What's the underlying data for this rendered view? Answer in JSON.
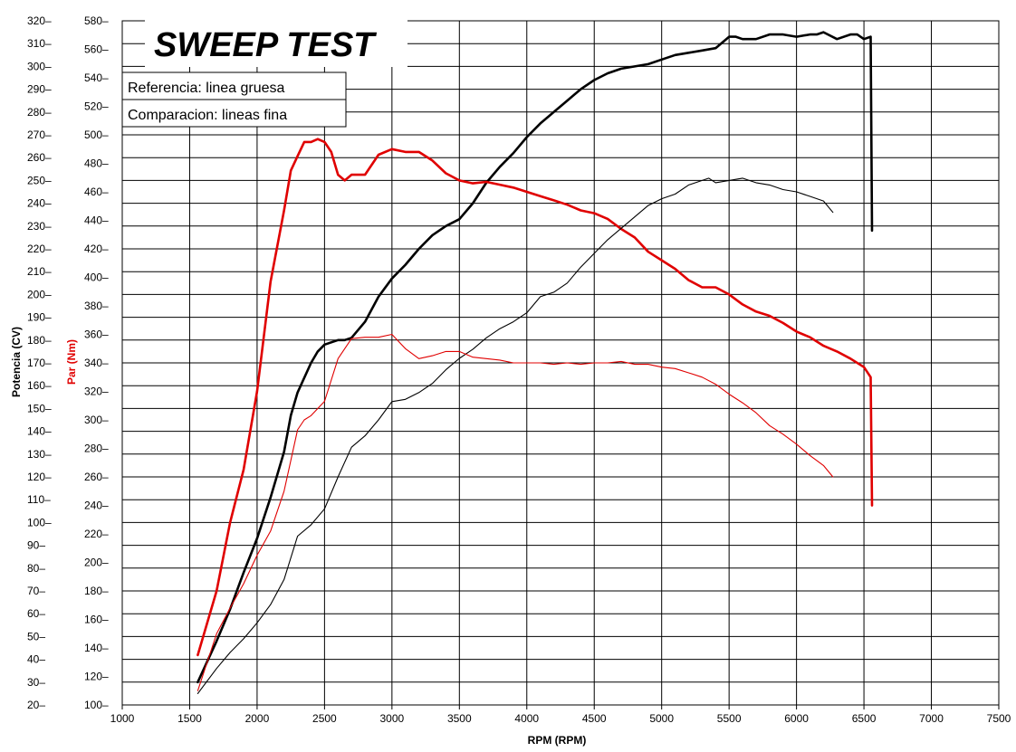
{
  "chart_data": {
    "type": "line",
    "title": "SWEEP TEST",
    "legend": [
      "Referencia: linea gruesa",
      "Comparacion: lineas fina"
    ],
    "xlabel": "RPM (RPM)",
    "ylabel_left": "Potencia (CV)",
    "ylabel_right": "Par (Nm)",
    "xlim": [
      1000,
      7500
    ],
    "ylim_power": [
      20,
      320
    ],
    "ylim_torque": [
      100,
      580
    ],
    "x_ticks": [
      1000,
      1500,
      2000,
      2500,
      3000,
      3500,
      4000,
      4500,
      5000,
      5500,
      6000,
      6500,
      7000,
      7500
    ],
    "power_ticks": [
      20,
      30,
      40,
      50,
      60,
      70,
      80,
      90,
      100,
      110,
      120,
      130,
      140,
      150,
      160,
      170,
      180,
      190,
      200,
      210,
      220,
      230,
      240,
      250,
      260,
      270,
      280,
      290,
      300,
      310,
      320
    ],
    "torque_ticks": [
      100,
      120,
      140,
      160,
      180,
      200,
      220,
      240,
      260,
      280,
      300,
      320,
      340,
      360,
      380,
      400,
      420,
      440,
      460,
      480,
      500,
      520,
      540,
      560,
      580
    ],
    "grid": true,
    "colors": {
      "power": "#000000",
      "torque": "#e00000",
      "grid": "#000000"
    },
    "series": [
      {
        "name": "Potencia (CV)",
        "axis": "power",
        "color": "#000000",
        "weight": "thick",
        "x": [
          1560,
          1700,
          1800,
          1900,
          2000,
          2100,
          2200,
          2250,
          2300,
          2400,
          2450,
          2500,
          2600,
          2650,
          2700,
          2800,
          2900,
          3000,
          3100,
          3200,
          3300,
          3400,
          3500,
          3600,
          3700,
          3800,
          3900,
          4000,
          4100,
          4200,
          4300,
          4400,
          4500,
          4600,
          4700,
          4800,
          4900,
          5000,
          5100,
          5200,
          5300,
          5400,
          5500,
          5550,
          5600,
          5700,
          5800,
          5900,
          6000,
          6100,
          6150,
          6200,
          6300,
          6400,
          6450,
          6500,
          6550,
          6560
        ],
        "y": [
          30,
          48,
          62,
          78,
          93,
          111,
          131,
          147,
          157,
          170,
          175,
          178,
          180,
          180,
          181,
          188,
          199,
          207,
          213,
          220,
          226,
          230,
          233,
          240,
          249,
          256,
          262,
          269,
          275,
          280,
          285,
          290,
          294,
          297,
          299,
          300,
          301,
          303,
          305,
          306,
          307,
          308,
          313,
          313,
          312,
          312,
          314,
          314,
          313,
          314,
          314,
          315,
          312,
          314,
          314,
          312,
          313,
          228
        ]
      },
      {
        "name": "Par (Nm)",
        "axis": "torque",
        "color": "#e00000",
        "weight": "thick",
        "x": [
          1560,
          1700,
          1800,
          1900,
          2000,
          2100,
          2200,
          2250,
          2300,
          2350,
          2400,
          2450,
          2500,
          2550,
          2600,
          2650,
          2700,
          2800,
          2900,
          3000,
          3100,
          3200,
          3300,
          3400,
          3500,
          3600,
          3700,
          3800,
          3900,
          4000,
          4100,
          4200,
          4300,
          4400,
          4500,
          4600,
          4700,
          4800,
          4900,
          5000,
          5100,
          5200,
          5300,
          5400,
          5500,
          5600,
          5700,
          5800,
          5900,
          6000,
          6100,
          6200,
          6300,
          6400,
          6500,
          6550,
          6560
        ],
        "y": [
          135,
          180,
          228,
          265,
          320,
          397,
          447,
          475,
          485,
          495,
          495,
          497,
          495,
          488,
          472,
          468,
          472,
          472,
          486,
          490,
          488,
          488,
          482,
          473,
          468,
          466,
          467,
          465,
          463,
          460,
          457,
          454,
          451,
          447,
          445,
          441,
          434,
          428,
          418,
          412,
          406,
          398,
          393,
          393,
          388,
          381,
          376,
          373,
          368,
          362,
          358,
          352,
          348,
          343,
          337,
          330,
          240
        ]
      },
      {
        "name": "Potencia (CV)",
        "axis": "power",
        "color": "#000000",
        "weight": "thin",
        "x": [
          1560,
          1700,
          1800,
          1900,
          2000,
          2100,
          2200,
          2300,
          2400,
          2500,
          2600,
          2700,
          2800,
          2900,
          3000,
          3100,
          3200,
          3300,
          3400,
          3500,
          3600,
          3700,
          3800,
          3900,
          4000,
          4100,
          4200,
          4300,
          4400,
          4500,
          4600,
          4700,
          4800,
          4900,
          5000,
          5100,
          5200,
          5300,
          5350,
          5400,
          5500,
          5600,
          5700,
          5800,
          5900,
          6000,
          6100,
          6200,
          6270
        ],
        "y": [
          25,
          36,
          43,
          49,
          56,
          64,
          75,
          94,
          99,
          106,
          120,
          133,
          138,
          145,
          153,
          154,
          157,
          161,
          167,
          172,
          176,
          181,
          185,
          188,
          192,
          199,
          201,
          205,
          212,
          218,
          224,
          229,
          234,
          239,
          242,
          244,
          248,
          250,
          251,
          249,
          250,
          251,
          249,
          248,
          246,
          245,
          243,
          241,
          236
        ]
      },
      {
        "name": "Par (Nm)",
        "axis": "torque",
        "color": "#e00000",
        "weight": "thin",
        "x": [
          1560,
          1700,
          1800,
          1900,
          2000,
          2100,
          2200,
          2300,
          2350,
          2400,
          2500,
          2600,
          2700,
          2800,
          2900,
          3000,
          3100,
          3200,
          3300,
          3400,
          3500,
          3600,
          3700,
          3800,
          3900,
          4000,
          4100,
          4200,
          4300,
          4400,
          4500,
          4600,
          4700,
          4800,
          4900,
          5000,
          5100,
          5200,
          5300,
          5400,
          5500,
          5600,
          5700,
          5800,
          5900,
          6000,
          6100,
          6200,
          6270
        ],
        "y": [
          110,
          150,
          168,
          185,
          205,
          222,
          250,
          293,
          300,
          303,
          313,
          343,
          357,
          358,
          358,
          360,
          350,
          343,
          345,
          348,
          348,
          344,
          343,
          342,
          340,
          340,
          340,
          339,
          340,
          339,
          340,
          340,
          341,
          339,
          339,
          337,
          336,
          333,
          330,
          325,
          318,
          312,
          305,
          296,
          290,
          283,
          275,
          268,
          260
        ]
      }
    ]
  }
}
